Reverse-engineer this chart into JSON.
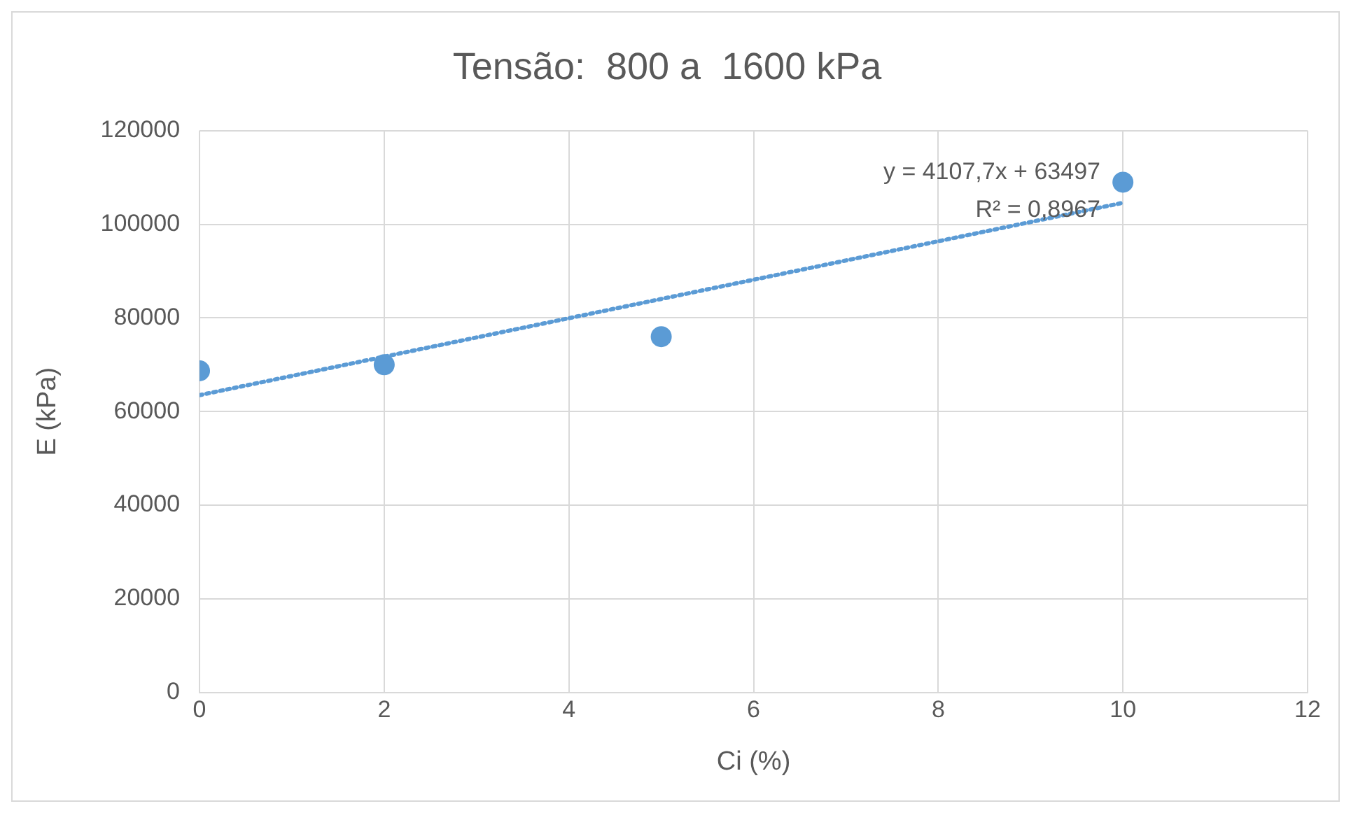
{
  "chart_data": {
    "type": "scatter",
    "title": "Tensão:  800 a  1600 kPa",
    "xlabel": "Ci (%)",
    "ylabel": "E (kPa)",
    "series": [
      {
        "color": "#5b9bd5",
        "x": [
          0,
          2,
          5,
          10
        ],
        "values": [
          68700,
          70000,
          76000,
          109000
        ]
      },
      {
        "type": "line",
        "color": "#5b9bd5",
        "line_style": "dotted",
        "marker": "none",
        "x": [
          0,
          10
        ],
        "values": [
          63500,
          104600
        ]
      }
    ],
    "xlim": [
      0,
      12
    ],
    "xticks": [
      0,
      2,
      4,
      6,
      8,
      10,
      12
    ],
    "ylim": [
      0,
      120000
    ],
    "yticks": [
      0,
      20000,
      40000,
      60000,
      80000,
      100000,
      120000
    ],
    "grid": true,
    "marker": "circle",
    "annotations": [
      "y = 4107,7x + 63497",
      "R² = 0,8967"
    ]
  }
}
